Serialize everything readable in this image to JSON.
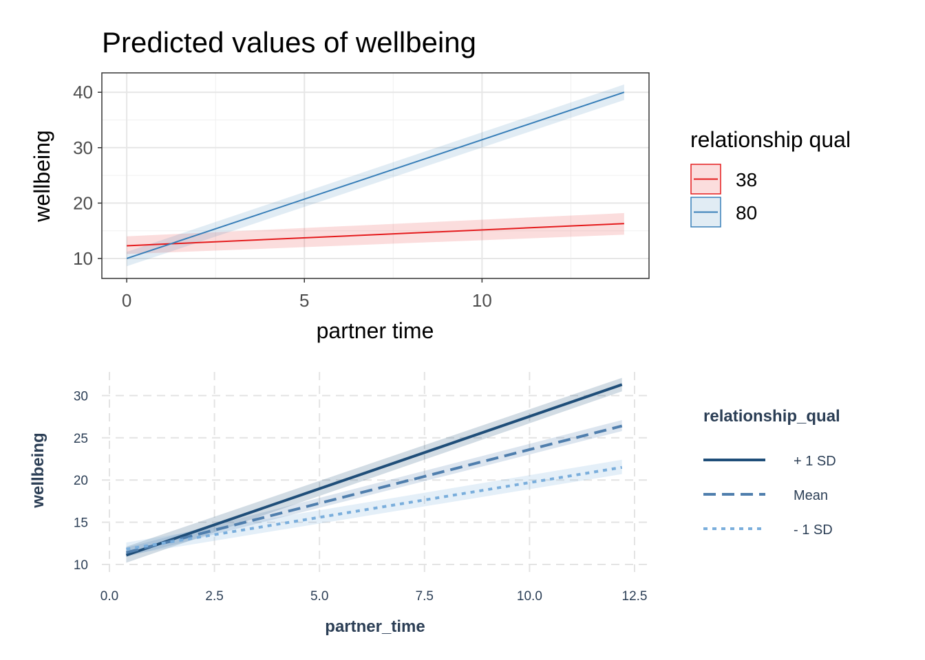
{
  "chart_data": [
    {
      "type": "line",
      "title": "Predicted values of wellbeing",
      "xlabel": "partner time",
      "ylabel": "wellbeing",
      "xlim": [
        -0.7,
        14.7
      ],
      "ylim": [
        6.4,
        43.5
      ],
      "xticks": [
        "0",
        "5",
        "10"
      ],
      "yticks": [
        "10",
        "20",
        "30",
        "40"
      ],
      "grid": true,
      "legend_title": "relationship qual",
      "legend_position": "right",
      "series": [
        {
          "name": "38",
          "color": "#e41a1c",
          "x": [
            0,
            14
          ],
          "y": [
            12.3,
            16.3
          ],
          "ci_low": [
            10.8,
            14.3
          ],
          "ci_high": [
            14.0,
            18.2
          ]
        },
        {
          "name": "80",
          "color": "#377eb8",
          "x": [
            0,
            14
          ],
          "y": [
            10.0,
            40.0
          ],
          "ci_low": [
            8.6,
            38.6
          ],
          "ci_high": [
            11.2,
            41.4
          ]
        }
      ]
    },
    {
      "type": "line",
      "title": "",
      "xlabel": "partner_time",
      "ylabel": "wellbeing",
      "xlim": [
        0,
        12.5
      ],
      "ylim": [
        10,
        32.8
      ],
      "xticks": [
        "0.0",
        "2.5",
        "5.0",
        "7.5",
        "10.0",
        "12.5"
      ],
      "yticks": [
        "10",
        "15",
        "20",
        "25",
        "30"
      ],
      "grid": true,
      "legend_title": "relationship_qual",
      "legend_position": "right",
      "series": [
        {
          "name": "+ 1 SD",
          "color": "#1f4e79",
          "dash": "solid",
          "x": [
            0.4,
            12.2
          ],
          "y": [
            11.1,
            31.3
          ],
          "ci_low": [
            10.2,
            30.5
          ],
          "ci_high": [
            12.1,
            32.1
          ]
        },
        {
          "name": "Mean",
          "color": "#4f7ead",
          "dash": "dashed",
          "x": [
            0.4,
            12.2
          ],
          "y": [
            11.4,
            26.4
          ],
          "ci_low": [
            10.9,
            25.8
          ],
          "ci_high": [
            12.0,
            27.1
          ]
        },
        {
          "name": "- 1 SD",
          "color": "#7aaedc",
          "dash": "dotted",
          "x": [
            0.4,
            12.2
          ],
          "y": [
            11.8,
            21.5
          ],
          "ci_low": [
            11.1,
            20.7
          ],
          "ci_high": [
            12.6,
            22.4
          ]
        }
      ]
    }
  ]
}
